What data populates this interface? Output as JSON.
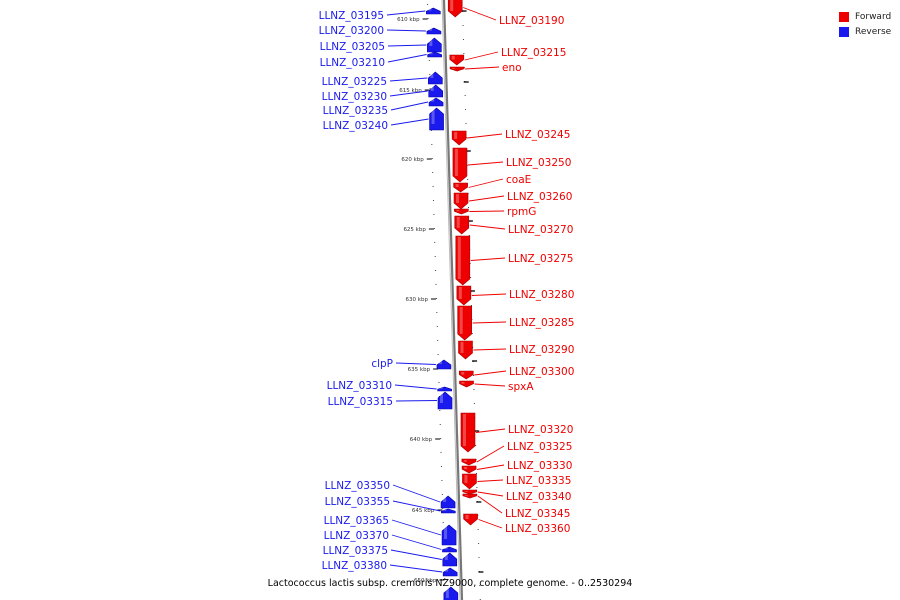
{
  "colors": {
    "forward": "#ee0000",
    "reverse": "#1a1aee",
    "backbone": "#777777",
    "background": "#ffffff"
  },
  "legend": [
    {
      "key": "forward",
      "label": "Forward"
    },
    {
      "key": "reverse",
      "label": "Reverse"
    }
  ],
  "caption": "Lactococcus lactis subsp. cremoris NZ9000, complete genome. - 0..2530294",
  "axis_ticks": [
    "610 kbp",
    "615 kbp",
    "620 kbp",
    "625 kbp",
    "630 kbp",
    "635 kbp",
    "640 kbp",
    "645 kbp",
    "650 kbp"
  ],
  "genes": [
    {
      "name": "LLNZ_03190",
      "strand": "forward"
    },
    {
      "name": "LLNZ_03195",
      "strand": "reverse"
    },
    {
      "name": "LLNZ_03200",
      "strand": "reverse"
    },
    {
      "name": "LLNZ_03205",
      "strand": "reverse"
    },
    {
      "name": "LLNZ_03210",
      "strand": "reverse"
    },
    {
      "name": "LLNZ_03215",
      "strand": "forward"
    },
    {
      "name": "eno",
      "strand": "forward"
    },
    {
      "name": "LLNZ_03225",
      "strand": "reverse"
    },
    {
      "name": "LLNZ_03230",
      "strand": "reverse"
    },
    {
      "name": "LLNZ_03235",
      "strand": "reverse"
    },
    {
      "name": "LLNZ_03240",
      "strand": "reverse"
    },
    {
      "name": "LLNZ_03245",
      "strand": "forward"
    },
    {
      "name": "LLNZ_03250",
      "strand": "forward"
    },
    {
      "name": "coaE",
      "strand": "forward"
    },
    {
      "name": "LLNZ_03260",
      "strand": "forward"
    },
    {
      "name": "rpmG",
      "strand": "forward"
    },
    {
      "name": "LLNZ_03270",
      "strand": "forward"
    },
    {
      "name": "LLNZ_03275",
      "strand": "forward"
    },
    {
      "name": "LLNZ_03280",
      "strand": "forward"
    },
    {
      "name": "LLNZ_03285",
      "strand": "forward"
    },
    {
      "name": "LLNZ_03290",
      "strand": "forward"
    },
    {
      "name": "clpP",
      "strand": "reverse"
    },
    {
      "name": "LLNZ_03300",
      "strand": "forward"
    },
    {
      "name": "spxA",
      "strand": "forward"
    },
    {
      "name": "LLNZ_03310",
      "strand": "reverse"
    },
    {
      "name": "LLNZ_03315",
      "strand": "reverse"
    },
    {
      "name": "LLNZ_03320",
      "strand": "forward"
    },
    {
      "name": "LLNZ_03325",
      "strand": "forward"
    },
    {
      "name": "LLNZ_03330",
      "strand": "forward"
    },
    {
      "name": "LLNZ_03335",
      "strand": "forward"
    },
    {
      "name": "LLNZ_03340",
      "strand": "forward"
    },
    {
      "name": "LLNZ_03345",
      "strand": "forward"
    },
    {
      "name": "LLNZ_03350",
      "strand": "reverse"
    },
    {
      "name": "LLNZ_03355",
      "strand": "reverse"
    },
    {
      "name": "LLNZ_03360",
      "strand": "forward"
    },
    {
      "name": "LLNZ_03365",
      "strand": "reverse"
    },
    {
      "name": "LLNZ_03370",
      "strand": "reverse"
    },
    {
      "name": "LLNZ_03375",
      "strand": "reverse"
    },
    {
      "name": "LLNZ_03380",
      "strand": "reverse"
    }
  ]
}
